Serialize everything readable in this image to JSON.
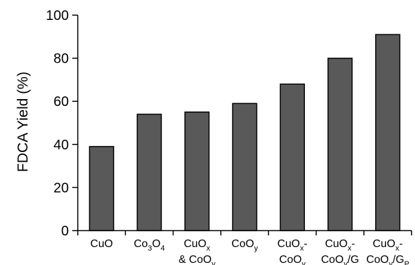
{
  "chart_data": {
    "type": "bar",
    "ylabel": "FDCA Yield (%)",
    "xlabel": "",
    "ylim": [
      0,
      100
    ],
    "yticks": [
      0,
      20,
      40,
      60,
      80,
      100
    ],
    "grid": false,
    "legend": "none",
    "categories": [
      {
        "label": "CuO"
      },
      {
        "label": "Co3O4"
      },
      {
        "label": "CuOx & CoOy"
      },
      {
        "label": "CoOy"
      },
      {
        "label": "CuOx-CoOy"
      },
      {
        "label": "CuOx-CoOy/G"
      },
      {
        "label": "CuOx-CoOy/GP"
      }
    ],
    "category_label_rich": [
      [
        [
          {
            "t": "CuO",
            "s": ""
          }
        ]
      ],
      [
        [
          {
            "t": "Co",
            "s": ""
          },
          {
            "t": "3",
            "s": "sub"
          },
          {
            "t": "O",
            "s": ""
          },
          {
            "t": "4",
            "s": "sub"
          }
        ]
      ],
      [
        [
          {
            "t": "CuO",
            "s": ""
          },
          {
            "t": "x",
            "s": "sub"
          }
        ],
        [
          {
            "t": "& CoO",
            "s": ""
          },
          {
            "t": "y",
            "s": "sub"
          }
        ]
      ],
      [
        [
          {
            "t": "CoO",
            "s": ""
          },
          {
            "t": "y",
            "s": "sub"
          }
        ]
      ],
      [
        [
          {
            "t": "CuO",
            "s": ""
          },
          {
            "t": "x",
            "s": "sub"
          },
          {
            "t": "-",
            "s": ""
          }
        ],
        [
          {
            "t": "CoO",
            "s": ""
          },
          {
            "t": "y",
            "s": "sub"
          }
        ]
      ],
      [
        [
          {
            "t": "CuO",
            "s": ""
          },
          {
            "t": "x",
            "s": "sub"
          },
          {
            "t": "-",
            "s": ""
          }
        ],
        [
          {
            "t": "CoO",
            "s": ""
          },
          {
            "t": "y",
            "s": "sub"
          },
          {
            "t": "/G",
            "s": ""
          }
        ]
      ],
      [
        [
          {
            "t": "CuO",
            "s": ""
          },
          {
            "t": "x",
            "s": "sub"
          },
          {
            "t": "-",
            "s": ""
          }
        ],
        [
          {
            "t": "CoO",
            "s": ""
          },
          {
            "t": "y",
            "s": "sub"
          },
          {
            "t": "/G",
            "s": ""
          },
          {
            "t": "P",
            "s": "sub"
          }
        ]
      ]
    ],
    "values": [
      39,
      54,
      55,
      59,
      68,
      80,
      91
    ],
    "colors": {
      "bar_fill": "#595959",
      "bar_stroke": "#000000",
      "axis": "#000000"
    }
  }
}
